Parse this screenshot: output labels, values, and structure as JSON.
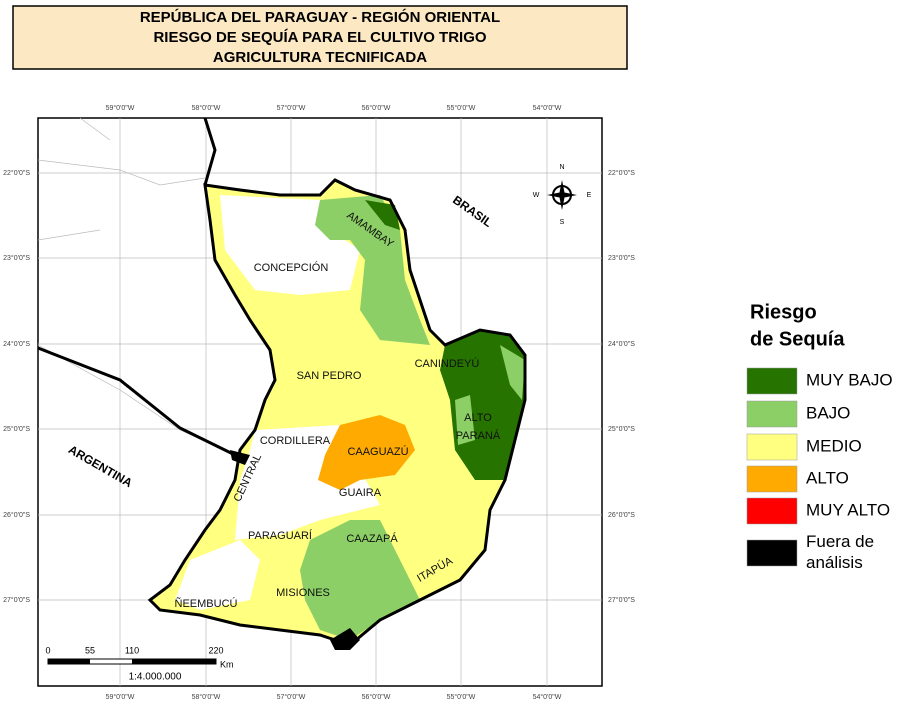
{
  "header": {
    "title_lines": [
      "REPÚBLICA DEL PARAGUAY - REGIÓN ORIENTAL",
      "RIESGO DE SEQUÍA PARA EL CULTIVO TRIGO",
      "AGRICULTURA TECNIFICADA"
    ]
  },
  "map": {
    "x_labels": [
      "59°0'0\"W",
      "58°0'0\"W",
      "57°0'0\"W",
      "56°0'0\"W",
      "55°0'0\"W",
      "54°0'0\"W"
    ],
    "y_labels": [
      "22°0'0\"S",
      "23°0'0\"S",
      "24°0'0\"S",
      "25°0'0\"S",
      "26°0'0\"S",
      "27°0'0\"S"
    ],
    "regions": [
      "AMAMBAY",
      "CONCEPCIÓN",
      "SAN PEDRO",
      "CANINDEYÚ",
      "ALTO",
      "PARANÁ",
      "CORDILLERA",
      "CAAGUAZÚ",
      "CENTRAL",
      "GUAIRA",
      "PARAGUARÍ",
      "CAAZAPÁ",
      "ITAPÚA",
      "MISIONES",
      "ÑEEMBUCÚ"
    ],
    "countries": [
      "BRASIL",
      "ARGENTINA"
    ],
    "compass": [
      "N",
      "S",
      "E",
      "W"
    ],
    "scale": {
      "ticks": [
        "0",
        "55",
        "110",
        "220"
      ],
      "unit": "Km",
      "ratio": "1:4.000.000"
    }
  },
  "legend": {
    "title_lines": [
      "Riesgo",
      "de Sequía"
    ],
    "items": [
      {
        "label_lines": [
          "MUY BAJO"
        ],
        "color": "#267300"
      },
      {
        "label_lines": [
          "BAJO"
        ],
        "color": "#8ccf66"
      },
      {
        "label_lines": [
          "MEDIO"
        ],
        "color": "#ffff80"
      },
      {
        "label_lines": [
          "ALTO"
        ],
        "color": "#ffaa00"
      },
      {
        "label_lines": [
          "MUY ALTO"
        ],
        "color": "#ff0000"
      },
      {
        "label_lines": [
          "Fuera de",
          "análisis"
        ],
        "color": "#000000"
      }
    ]
  }
}
